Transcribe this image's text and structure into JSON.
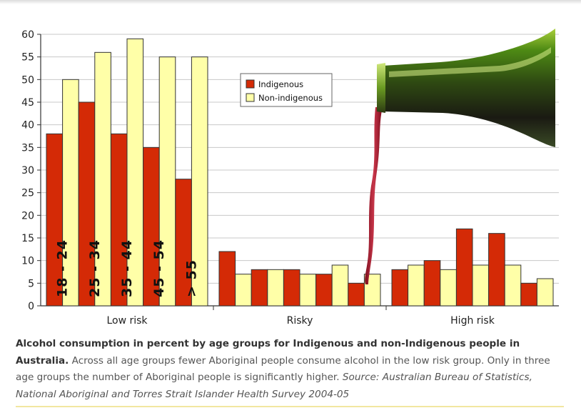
{
  "chart_data": {
    "type": "bar",
    "categories": [
      "Low risk",
      "Risky",
      "High risk"
    ],
    "age_groups": [
      "18 - 24",
      "25 - 34",
      "35 - 44",
      "45 - 54",
      "> 55"
    ],
    "series": [
      {
        "name": "Indigenous",
        "color": "#d42a06",
        "values": [
          [
            38,
            45,
            38,
            35,
            28
          ],
          [
            12,
            8,
            8,
            7,
            5
          ],
          [
            8,
            10,
            17,
            16,
            5
          ]
        ]
      },
      {
        "name": "Non-indigenous",
        "color": "#ffffa8",
        "values": [
          [
            50,
            56,
            59,
            55,
            55
          ],
          [
            7,
            8,
            7,
            9,
            7
          ],
          [
            9,
            8,
            9,
            9,
            6
          ]
        ]
      }
    ],
    "ylim": [
      0,
      60
    ],
    "yticks": [
      0,
      5,
      10,
      15,
      20,
      25,
      30,
      35,
      40,
      45,
      50,
      55,
      60
    ],
    "grid": true,
    "legend_position": "top-center"
  },
  "caption": {
    "title": "Alcohol consumption in percent by age groups for Indigenous and non-Indigenous people in Australia.",
    "body": " Across all age groups fewer Aboriginal people consume alcohol in the low risk group. Only in three age groups the number of Aboriginal people is significantly higher. ",
    "source": "Source: Australian Bureau of Statistics, National Aboriginal and Torres Strait Islander Health Survey 2004-05"
  }
}
